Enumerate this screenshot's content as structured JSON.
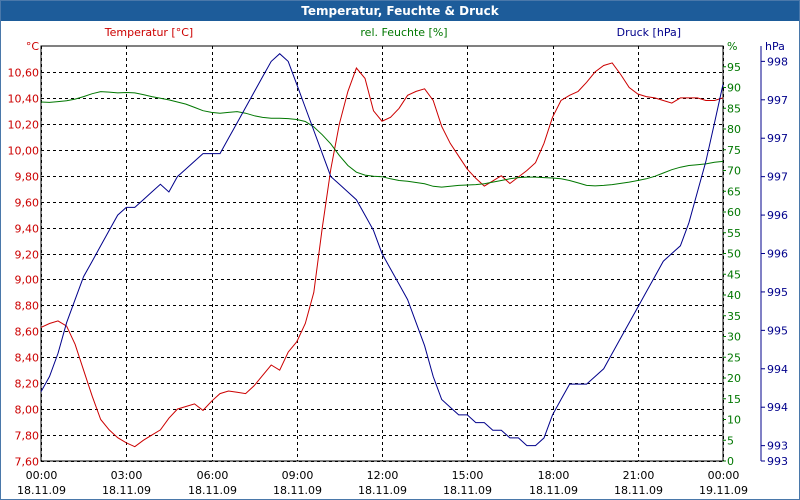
{
  "window": {
    "title": "Temperatur, Feuchte & Druck"
  },
  "colors": {
    "temp": "#cc0000",
    "hum": "#007700",
    "press": "#00008b",
    "titlebar": "#1d5c9a"
  },
  "chart_data": {
    "type": "line",
    "title": "Temperatur, Feuchte & Druck",
    "x_ticks": [
      {
        "time": "00:00",
        "date": "18.11.09"
      },
      {
        "time": "03:00",
        "date": "18.11.09"
      },
      {
        "time": "06:00",
        "date": "18.11.09"
      },
      {
        "time": "09:00",
        "date": "18.11.09"
      },
      {
        "time": "12:00",
        "date": "18.11.09"
      },
      {
        "time": "15:00",
        "date": "18.11.09"
      },
      {
        "time": "18:00",
        "date": "18.11.09"
      },
      {
        "time": "21:00",
        "date": "18.11.09"
      },
      {
        "time": "00:00",
        "date": "19.11.09"
      }
    ],
    "x_range_hours": [
      0,
      24
    ],
    "axes": {
      "temp": {
        "label": "Temperatur [°C]",
        "unit": "°C",
        "range": [
          7.6,
          10.8
        ],
        "ticks": [
          "10,60",
          "10,40",
          "10,20",
          "10,00",
          "9,80",
          "9,60",
          "9,40",
          "9,20",
          "9,00",
          "8,80",
          "8,60",
          "8,40",
          "8,20",
          "8,00",
          "7,80",
          "7,60"
        ]
      },
      "hum": {
        "label": "rel. Feuchte [%]",
        "unit": "%",
        "range": [
          0,
          100
        ],
        "ticks": [
          "95",
          "90",
          "85",
          "80",
          "75",
          "70",
          "65",
          "60",
          "55",
          "50",
          "45",
          "40",
          "35",
          "30",
          "25",
          "20",
          "15",
          "10",
          "5",
          "0"
        ]
      },
      "press": {
        "label": "Druck [hPa]",
        "unit": "hPa",
        "range": [
          992.9,
          998.3
        ],
        "ticks": [
          "998",
          "997",
          "997",
          "997",
          "996",
          "996",
          "995",
          "995",
          "994",
          "994",
          "993",
          "993"
        ]
      }
    },
    "series": [
      {
        "name": "Temperatur",
        "axis": "temp",
        "x": [
          0,
          0.3,
          0.6,
          0.9,
          1.2,
          1.5,
          1.8,
          2.1,
          2.4,
          2.7,
          3.0,
          3.3,
          3.6,
          3.9,
          4.2,
          4.5,
          4.8,
          5.1,
          5.4,
          5.7,
          6.0,
          6.3,
          6.6,
          6.9,
          7.2,
          7.5,
          7.8,
          8.1,
          8.4,
          8.7,
          9.0,
          9.3,
          9.6,
          9.9,
          10.2,
          10.5,
          10.8,
          11.1,
          11.4,
          11.7,
          12.0,
          12.3,
          12.6,
          12.9,
          13.2,
          13.5,
          13.8,
          14.1,
          14.4,
          14.7,
          15.0,
          15.3,
          15.6,
          15.9,
          16.2,
          16.5,
          16.8,
          17.1,
          17.4,
          17.7,
          18.0,
          18.3,
          18.6,
          18.9,
          19.2,
          19.5,
          19.8,
          20.1,
          20.4,
          20.7,
          21.0,
          21.3,
          21.6,
          21.9,
          22.2,
          22.5,
          22.8,
          23.1,
          23.4,
          23.7,
          24.0
        ],
        "values": [
          8.63,
          8.66,
          8.68,
          8.64,
          8.5,
          8.3,
          8.1,
          7.92,
          7.84,
          7.78,
          7.74,
          7.71,
          7.76,
          7.8,
          7.84,
          7.93,
          8.0,
          8.02,
          8.04,
          7.99,
          8.06,
          8.12,
          8.14,
          8.13,
          8.12,
          8.18,
          8.26,
          8.34,
          8.3,
          8.44,
          8.52,
          8.66,
          8.9,
          9.4,
          9.85,
          10.2,
          10.45,
          10.63,
          10.55,
          10.3,
          10.22,
          10.25,
          10.32,
          10.42,
          10.45,
          10.47,
          10.38,
          10.18,
          10.05,
          9.95,
          9.85,
          9.78,
          9.72,
          9.76,
          9.8,
          9.74,
          9.79,
          9.84,
          9.9,
          10.05,
          10.25,
          10.38,
          10.42,
          10.45,
          10.52,
          10.6,
          10.65,
          10.67,
          10.58,
          10.48,
          10.43,
          10.41,
          10.4,
          10.38,
          10.36,
          10.4,
          10.4,
          10.4,
          10.38,
          10.38,
          10.4
        ]
      },
      {
        "name": "rel. Feuchte",
        "axis": "hum",
        "x": [
          0,
          0.3,
          0.6,
          0.9,
          1.2,
          1.5,
          1.8,
          2.1,
          2.4,
          2.7,
          3.0,
          3.3,
          3.6,
          3.9,
          4.2,
          4.5,
          4.8,
          5.1,
          5.4,
          5.7,
          6.0,
          6.3,
          6.6,
          6.9,
          7.2,
          7.5,
          7.8,
          8.1,
          8.4,
          8.7,
          9.0,
          9.3,
          9.6,
          9.9,
          10.2,
          10.5,
          10.8,
          11.1,
          11.4,
          11.7,
          12.0,
          12.3,
          12.6,
          12.9,
          13.2,
          13.5,
          13.8,
          14.1,
          14.4,
          14.7,
          15.0,
          15.3,
          15.6,
          15.9,
          16.2,
          16.5,
          16.8,
          17.1,
          17.4,
          17.7,
          18.0,
          18.3,
          18.6,
          18.9,
          19.2,
          19.5,
          19.8,
          20.1,
          20.4,
          20.7,
          21.0,
          21.3,
          21.6,
          21.9,
          22.2,
          22.5,
          22.8,
          23.1,
          23.4,
          23.7,
          24.0
        ],
        "values": [
          86.5,
          86.4,
          86.6,
          86.8,
          87.2,
          87.8,
          88.5,
          89.0,
          88.9,
          88.7,
          88.8,
          88.7,
          88.3,
          87.8,
          87.4,
          87.0,
          86.5,
          86.0,
          85.2,
          84.4,
          84.0,
          83.8,
          84.0,
          84.2,
          83.8,
          83.2,
          82.8,
          82.6,
          82.6,
          82.5,
          82.3,
          81.8,
          80.5,
          78.6,
          76.4,
          73.6,
          71.2,
          69.6,
          68.9,
          68.6,
          68.5,
          68.0,
          67.6,
          67.4,
          67.1,
          66.8,
          66.2,
          66.0,
          66.2,
          66.4,
          66.5,
          66.6,
          66.8,
          67.2,
          67.6,
          68.0,
          68.3,
          68.4,
          68.4,
          68.3,
          68.2,
          68.0,
          67.6,
          67.0,
          66.4,
          66.3,
          66.4,
          66.6,
          66.9,
          67.2,
          67.6,
          68.0,
          68.6,
          69.4,
          70.2,
          70.8,
          71.2,
          71.4,
          71.6,
          72.0,
          72.2
        ]
      },
      {
        "name": "Druck",
        "axis": "press",
        "x": [
          0,
          0.3,
          0.6,
          0.9,
          1.2,
          1.5,
          1.8,
          2.1,
          2.4,
          2.7,
          3.0,
          3.3,
          3.6,
          3.9,
          4.2,
          4.5,
          4.8,
          5.1,
          5.4,
          5.7,
          6.0,
          6.3,
          6.6,
          6.9,
          7.2,
          7.5,
          7.8,
          8.1,
          8.4,
          8.7,
          9.0,
          9.3,
          9.6,
          9.9,
          10.2,
          10.5,
          10.8,
          11.1,
          11.4,
          11.7,
          12.0,
          12.3,
          12.6,
          12.9,
          13.2,
          13.5,
          13.8,
          14.1,
          14.4,
          14.7,
          15.0,
          15.3,
          15.6,
          15.9,
          16.2,
          16.5,
          16.8,
          17.1,
          17.4,
          17.7,
          18.0,
          18.3,
          18.6,
          18.9,
          19.2,
          19.5,
          19.8,
          20.1,
          20.4,
          20.7,
          21.0,
          21.3,
          21.6,
          21.9,
          22.2,
          22.5,
          22.8,
          23.1,
          23.4,
          23.7,
          24.0
        ],
        "values": [
          993.8,
          994.0,
          994.3,
          994.7,
          995.0,
          995.3,
          995.5,
          995.7,
          995.9,
          996.1,
          996.2,
          996.2,
          996.3,
          996.4,
          996.5,
          996.4,
          996.6,
          996.7,
          996.8,
          996.9,
          996.9,
          996.9,
          997.1,
          997.3,
          997.5,
          997.7,
          997.9,
          998.1,
          998.2,
          998.1,
          997.8,
          997.5,
          997.2,
          996.9,
          996.6,
          996.5,
          996.4,
          996.3,
          996.1,
          995.9,
          995.6,
          995.4,
          995.2,
          995.0,
          994.7,
          994.4,
          994.0,
          993.7,
          993.6,
          993.5,
          993.5,
          993.4,
          993.4,
          993.3,
          993.3,
          993.2,
          993.2,
          993.1,
          993.1,
          993.2,
          993.5,
          993.7,
          993.9,
          993.9,
          993.9,
          994.0,
          994.1,
          994.3,
          994.5,
          994.7,
          994.9,
          995.1,
          995.3,
          995.5,
          995.6,
          995.7,
          996.0,
          996.4,
          996.8,
          997.3,
          997.8
        ]
      }
    ]
  }
}
